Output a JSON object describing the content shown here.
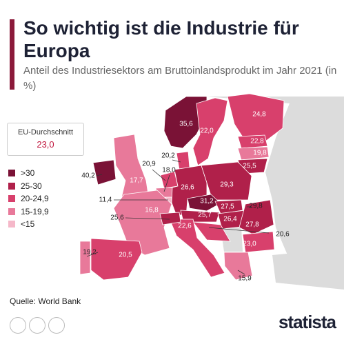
{
  "header": {
    "title": "So wichtig ist die Industrie für Europa",
    "subtitle": "Anteil des Industriesektors am Bruttoinlandsprodukt im Jahr 2021 (in %)"
  },
  "average": {
    "label": "EU-Durchschnitt",
    "value": "23,0"
  },
  "legend": [
    {
      "label": ">30",
      "color": "#7a1236"
    },
    {
      "label": "25-30",
      "color": "#b0204a"
    },
    {
      "label": "20-24,9",
      "color": "#d8406c"
    },
    {
      "label": "15-19,9",
      "color": "#e8799a"
    },
    {
      "label": "<15",
      "color": "#f5b8c9"
    }
  ],
  "map": {
    "labels": [
      "35,6",
      "22,0",
      "24,8",
      "22,8",
      "19,8",
      "25,5",
      "20,2",
      "40,2",
      "17,7",
      "20,9",
      "18,0",
      "11,4",
      "16,8",
      "26,6",
      "29,3",
      "31,2",
      "27,5",
      "29,8",
      "25,6",
      "25,7",
      "26,4",
      "22,6",
      "27,8",
      "20,6",
      "23,0",
      "19,2",
      "20,5",
      "15,9"
    ]
  },
  "source": "Quelle: World Bank",
  "brand": "statista"
}
